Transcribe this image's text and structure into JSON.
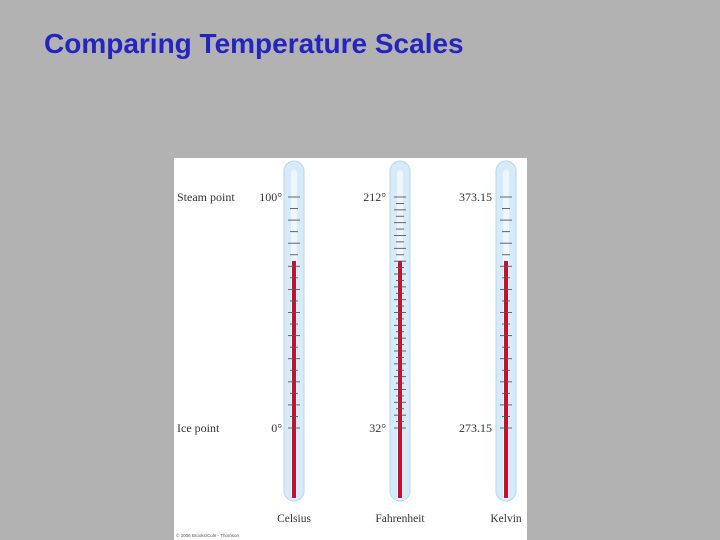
{
  "slide": {
    "title": "Comparing Temperature Scales"
  },
  "figure": {
    "row_labels": {
      "steam": "Steam point",
      "ice": "Ice point"
    },
    "thermometers": [
      {
        "name": "Celsius",
        "steam": "100°",
        "ice": "0°",
        "fill_color": "#c8102e"
      },
      {
        "name": "Fahrenheit",
        "steam": "212°",
        "ice": "32°",
        "fill_color": "#c8102e"
      },
      {
        "name": "Kelvin",
        "steam": "373.15",
        "ice": "273.15",
        "fill_color": "#c8102e"
      }
    ],
    "credit": "© 2006 Brooks/Cole - Thomson",
    "tube_color": "#cfe6f7"
  }
}
